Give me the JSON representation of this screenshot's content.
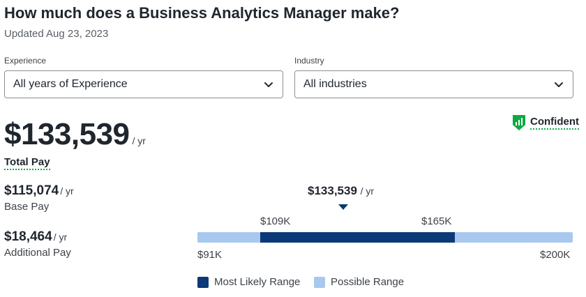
{
  "header": {
    "title": "How much does a Business Analytics Manager make?",
    "updated": "Updated Aug 23, 2023"
  },
  "filters": {
    "experience": {
      "label": "Experience",
      "value": "All years of Experience"
    },
    "industry": {
      "label": "Industry",
      "value": "All industries"
    }
  },
  "confidence": {
    "label": "Confident",
    "icon": "bar-chart-shield-icon",
    "color": "#0caa41"
  },
  "total_pay": {
    "amount": "$133,539",
    "per": "/ yr",
    "label": "Total Pay"
  },
  "base_pay": {
    "amount": "$115,074",
    "per": "/ yr",
    "label": "Base Pay"
  },
  "additional_pay": {
    "amount": "$18,464",
    "per": "/ yr",
    "label": "Additional Pay"
  },
  "range": {
    "median": {
      "amount": "$133,539",
      "per": "/ yr",
      "value": 133539
    },
    "most_likely_low": {
      "label": "$109K",
      "value": 109000
    },
    "most_likely_high": {
      "label": "$165K",
      "value": 165000
    },
    "possible_low": {
      "label": "$91K",
      "value": 91000
    },
    "possible_high": {
      "label": "$200K",
      "value": 200000
    }
  },
  "legend": {
    "most_likely": "Most Likely Range",
    "possible": "Possible Range"
  },
  "colors": {
    "most_likely": "#0c3a78",
    "possible": "#a8c8ef",
    "accent_green": "#0caa41"
  }
}
